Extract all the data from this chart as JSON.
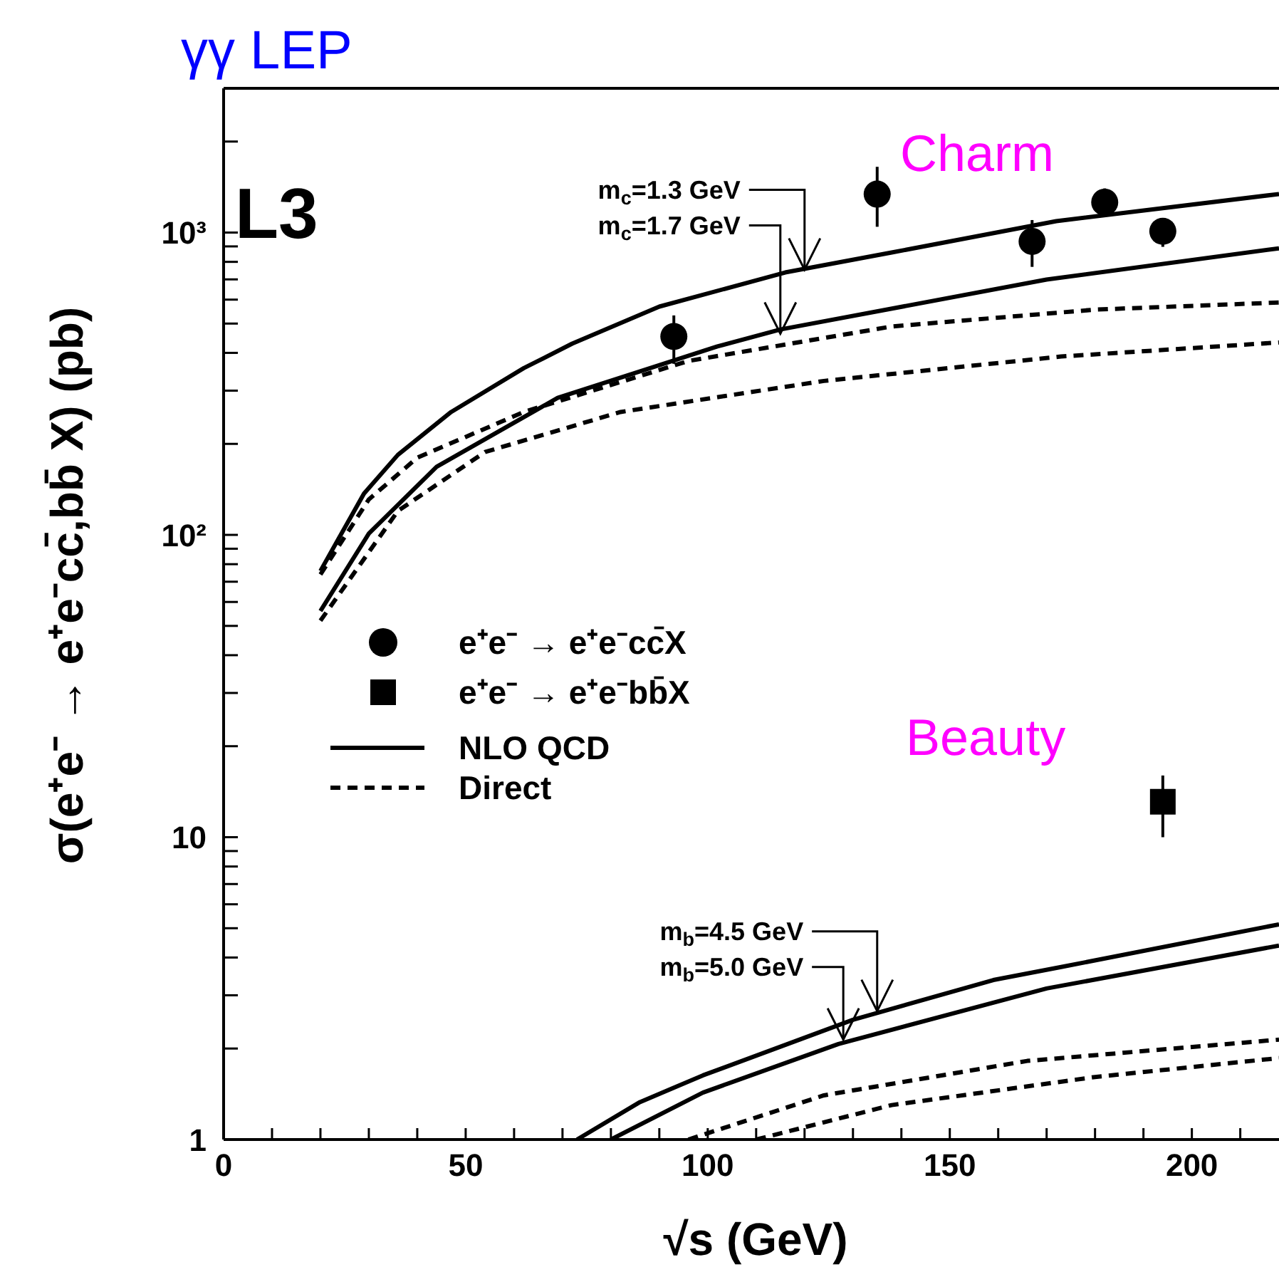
{
  "chart_data": {
    "type": "line",
    "title": "γγ  LEP",
    "xlabel": "√s (GeV)",
    "ylabel": "σ(e⁺e⁻ → e⁺e⁻cc̄,bb̄ X) (pb)",
    "log": "y",
    "legend": "left",
    "xlim": [
      0,
      218
    ],
    "ylim": [
      1,
      3000
    ],
    "xticks": [
      0,
      {
        "value": 10,
        "label": null
      },
      {
        "value": 20,
        "label": null
      },
      {
        "value": 30,
        "label": null
      },
      {
        "value": 40,
        "label": null
      },
      50,
      {
        "value": 60,
        "label": null
      },
      {
        "value": 70,
        "label": null
      },
      {
        "value": 80,
        "label": null
      },
      {
        "value": 90,
        "label": null
      },
      100,
      {
        "value": 110,
        "label": null
      },
      {
        "value": 120,
        "label": null
      },
      {
        "value": 130,
        "label": null
      },
      {
        "value": 140,
        "label": null
      },
      150,
      {
        "value": 160,
        "label": null
      },
      {
        "value": 170,
        "label": null
      },
      {
        "value": 180,
        "label": null
      },
      {
        "value": 190,
        "label": null
      },
      200,
      {
        "value": 210,
        "label": null
      }
    ],
    "yticks": [
      1,
      {
        "value": 2,
        "label": null
      },
      {
        "value": 3,
        "label": null
      },
      {
        "value": 4,
        "label": null
      },
      {
        "value": 5,
        "label": null
      },
      {
        "value": 6,
        "label": null
      },
      {
        "value": 7,
        "label": null
      },
      {
        "value": 8,
        "label": null
      },
      {
        "value": 9,
        "label": null
      },
      10,
      {
        "value": 20,
        "label": null
      },
      {
        "value": 30,
        "label": null
      },
      {
        "value": 40,
        "label": null
      },
      {
        "value": 50,
        "label": null
      },
      {
        "value": 60,
        "label": null
      },
      {
        "value": 70,
        "label": null
      },
      {
        "value": 80,
        "label": null
      },
      {
        "value": 90,
        "label": null
      },
      {
        "value": 100,
        "label": "10²"
      },
      {
        "value": 200,
        "label": null
      },
      {
        "value": 300,
        "label": null
      },
      {
        "value": 400,
        "label": null
      },
      {
        "value": 500,
        "label": null
      },
      {
        "value": 600,
        "label": null
      },
      {
        "value": 700,
        "label": null
      },
      {
        "value": 800,
        "label": null
      },
      {
        "value": 900,
        "label": null
      },
      {
        "value": 1000,
        "label": "10³"
      },
      {
        "value": 2000,
        "label": null
      }
    ],
    "annotations": [
      "L3",
      "Charm",
      "Beauty",
      {
        "text": "m$_{c}$=1.3 GeV",
        "x": 120,
        "y": 754
      },
      {
        "text": "m$_{c}$=1.7 GeV",
        "x": 115,
        "y": 463
      },
      {
        "text": "m$_{b}$=4.5 GeV",
        "x": 135,
        "y": 2.66
      },
      {
        "text": "m$_{b}$=5.0 GeV",
        "x": 128,
        "y": 2.14
      }
    ],
    "series": [
      {
        "name": "e⁺e⁻ → e⁺e⁻cc̄X",
        "type": "scatter",
        "marker": "circle",
        "color": "#000000",
        "x": [
          93,
          135,
          167,
          182,
          194
        ],
        "values": [
          453,
          1340,
          935,
          1260,
          1010
        ],
        "errors": [
          [
            368,
            532
          ],
          [
            1045,
            1650
          ],
          [
            770,
            1100
          ],
          [
            1150,
            1400
          ],
          [
            897,
            1114
          ]
        ]
      },
      {
        "name": "e⁺e⁻ → e⁺e⁻bb̄X",
        "type": "scatter",
        "marker": "square",
        "color": "#000000",
        "x": [
          194
        ],
        "values": [
          13.1
        ],
        "errors": [
          [
            10,
            16
          ]
        ]
      },
      {
        "name": "NLO QCD",
        "line_style": "solid",
        "color": "#000000",
        "x": [
          20,
          29,
          36,
          47,
          62,
          72,
          90,
          116,
          138,
          172,
          218
        ],
        "values": [
          76,
          137,
          184,
          255,
          356,
          429,
          569,
          738,
          859,
          1091,
          1341
        ]
      },
      {
        "line_style": "solid",
        "color": "#000000",
        "x": [
          20,
          30,
          44,
          69,
          102,
          115,
          170,
          218
        ],
        "values": [
          56,
          101,
          168,
          284,
          420,
          478,
          699,
          887
        ]
      },
      {
        "name": "Direct",
        "line_style": "dashed",
        "color": "#000000",
        "x": [
          20,
          30,
          40,
          62,
          96,
          138,
          180,
          218
        ],
        "values": [
          74,
          131,
          180,
          255,
          376,
          489,
          556,
          587
        ]
      },
      {
        "line_style": "dashed",
        "color": "#000000",
        "x": [
          20,
          36,
          54,
          82,
          124,
          173,
          218
        ],
        "values": [
          52,
          120,
          188,
          255,
          323,
          389,
          433
        ]
      },
      {
        "line_style": "solid",
        "color": "#000000",
        "x": [
          73,
          86,
          99,
          130,
          159,
          173,
          218
        ],
        "values": [
          1,
          1.33,
          1.63,
          2.49,
          3.37,
          3.72,
          5.15
        ]
      },
      {
        "line_style": "solid",
        "color": "#000000",
        "x": [
          80,
          99,
          127,
          170,
          218
        ],
        "values": [
          1,
          1.43,
          2.07,
          3.16,
          4.38
        ]
      },
      {
        "line_style": "dashed",
        "color": "#000000",
        "x": [
          96,
          124,
          166,
          218
        ],
        "values": [
          1,
          1.4,
          1.82,
          2.14
        ]
      },
      {
        "line_style": "dashed",
        "color": "#000000",
        "x": [
          110,
          138,
          180,
          218
        ],
        "values": [
          1,
          1.3,
          1.61,
          1.86
        ]
      }
    ]
  }
}
